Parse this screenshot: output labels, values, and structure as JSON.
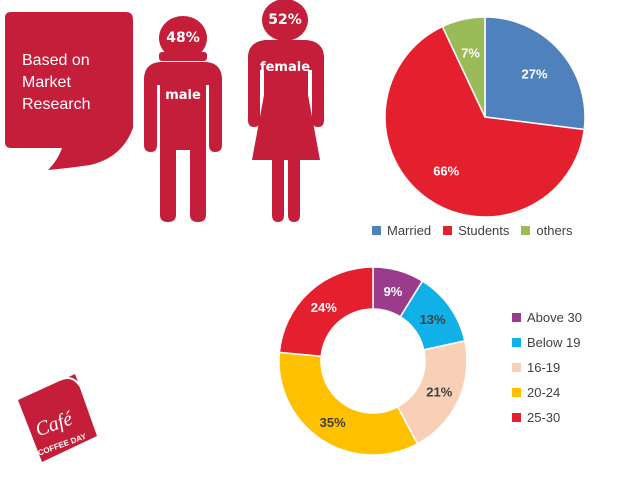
{
  "callout": {
    "lines": [
      "Based on",
      "Market",
      "Research"
    ]
  },
  "gender": {
    "male": {
      "label": "male",
      "percent": "48%"
    },
    "female": {
      "label": "female",
      "percent": "52%"
    }
  },
  "logo": {
    "text_main": "Café",
    "text_sub": "COFFEE DAY"
  },
  "colors": {
    "crimson": "#C41E3A",
    "married": "#4F81BD",
    "students": "#E5202E",
    "others": "#9BBB59",
    "above30": "#9B3B8C",
    "below19": "#12B0E8",
    "age16_19": "#F8D0B5",
    "age20_24": "#FFC000",
    "age25_30": "#E5202E"
  },
  "chart_data": [
    {
      "type": "pie",
      "categories": [
        "Married",
        "Students",
        "others"
      ],
      "values": [
        27,
        66,
        7
      ],
      "data_labels": [
        "27%",
        "66%",
        "7%"
      ],
      "legend": "bottom"
    },
    {
      "type": "donut",
      "categories": [
        "Above 30",
        "Below 19",
        "16-19",
        "20-24",
        "25-30"
      ],
      "values": [
        9,
        13,
        21,
        35,
        24
      ],
      "data_labels": [
        "9%",
        "13%",
        "21%",
        "35%",
        "24%"
      ],
      "legend": "right"
    }
  ]
}
